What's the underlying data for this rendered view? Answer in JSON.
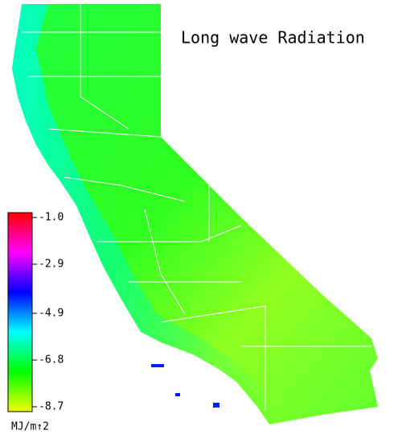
{
  "title": "Long wave Radiation",
  "colorbar": {
    "unit": "MJ/m↑2",
    "lim": [
      -8.7,
      -1
    ],
    "ticks": [
      {
        "value": -1,
        "label": "-1.0"
      },
      -2.9,
      -4.9,
      -6.8,
      -8.7
    ],
    "colors": [
      "#f0ff00",
      "#00ff00",
      "#00ffff",
      "#0000ff",
      "#ff00ff",
      "#ff0000"
    ]
  }
}
